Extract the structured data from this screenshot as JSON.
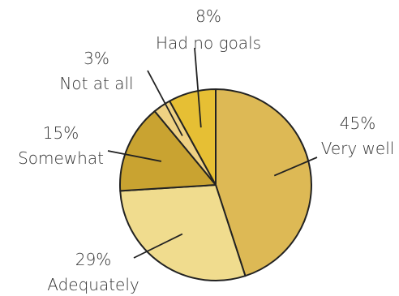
{
  "chart_data": {
    "type": "pie",
    "start_angle_deg": 0,
    "direction": "clockwise",
    "slices": [
      {
        "label": "Very well",
        "value": 45,
        "value_label": "45%",
        "color": "#DDB955"
      },
      {
        "label": "Adequately",
        "value": 29,
        "value_label": "29%",
        "color": "#F0DC8E"
      },
      {
        "label": "Somewhat",
        "value": 15,
        "value_label": "15%",
        "color": "#C9A331"
      },
      {
        "label": "Not at all",
        "value": 3,
        "value_label": "3%",
        "color": "#EFD183"
      },
      {
        "label": "Had no goals",
        "value": 8,
        "value_label": "8%",
        "color": "#E6BF34"
      }
    ]
  }
}
